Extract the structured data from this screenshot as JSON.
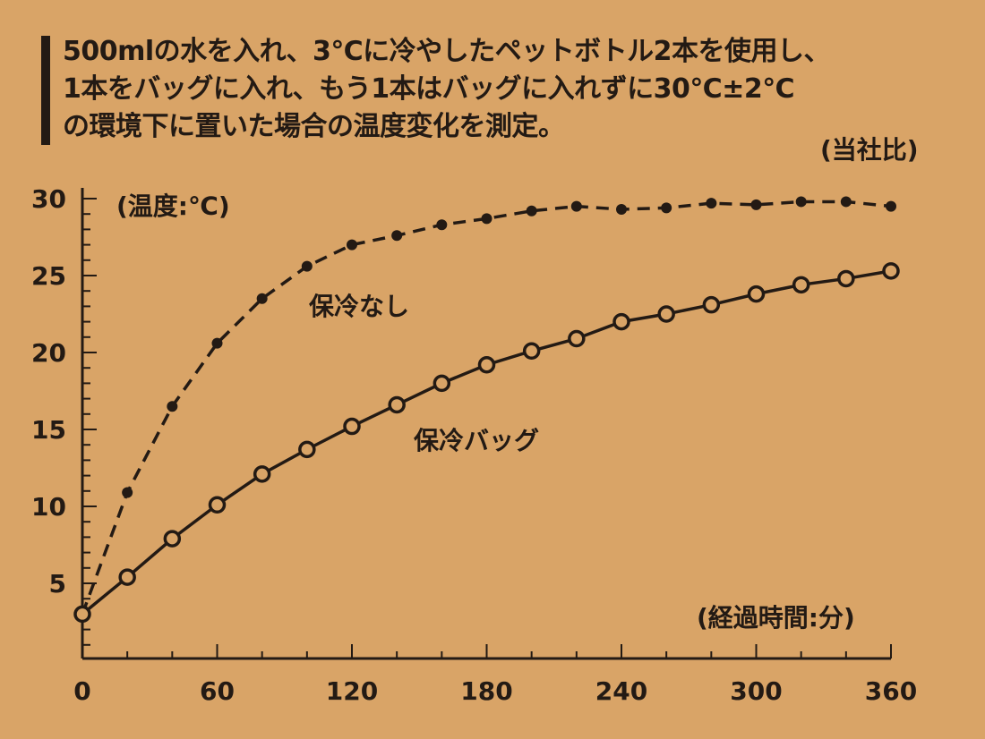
{
  "description": [
    "500mlの水を入れ、3℃に冷やしたペットボトル2本を使用し、",
    "1本をバッグに入れ、もう1本はバッグに入れずに30℃±2℃",
    "の環境下に置いた場合の温度変化を測定。"
  ],
  "note": "(当社比)",
  "colors": {
    "background": "#d9a467",
    "ink": "#231a14"
  },
  "chart_data": {
    "type": "line",
    "xlabel": "(経過時間:分)",
    "ylabel": "(温度:℃)",
    "xlim": [
      0,
      360
    ],
    "ylim": [
      0,
      30
    ],
    "x_ticks": [
      "0",
      "60",
      "120",
      "180",
      "240",
      "300",
      "360"
    ],
    "y_ticks": [
      "5",
      "10",
      "15",
      "20",
      "25",
      "30"
    ],
    "grid": false,
    "x": [
      0,
      20,
      40,
      60,
      80,
      100,
      120,
      140,
      160,
      180,
      200,
      220,
      240,
      260,
      280,
      300,
      320,
      340,
      360
    ],
    "series": [
      {
        "name": "保冷なし",
        "style": "dashed, filled markers",
        "values": [
          3.0,
          10.9,
          16.5,
          20.6,
          23.5,
          25.6,
          27.0,
          27.6,
          28.3,
          28.7,
          29.2,
          29.5,
          29.3,
          29.4,
          29.7,
          29.6,
          29.8,
          29.8,
          29.5
        ]
      },
      {
        "name": "保冷バッグ",
        "style": "solid, open markers",
        "values": [
          3.0,
          5.4,
          7.9,
          10.1,
          12.1,
          13.7,
          15.2,
          16.6,
          18.0,
          19.2,
          20.1,
          20.9,
          22.0,
          22.5,
          23.1,
          23.8,
          24.4,
          24.8,
          25.3
        ]
      }
    ]
  }
}
